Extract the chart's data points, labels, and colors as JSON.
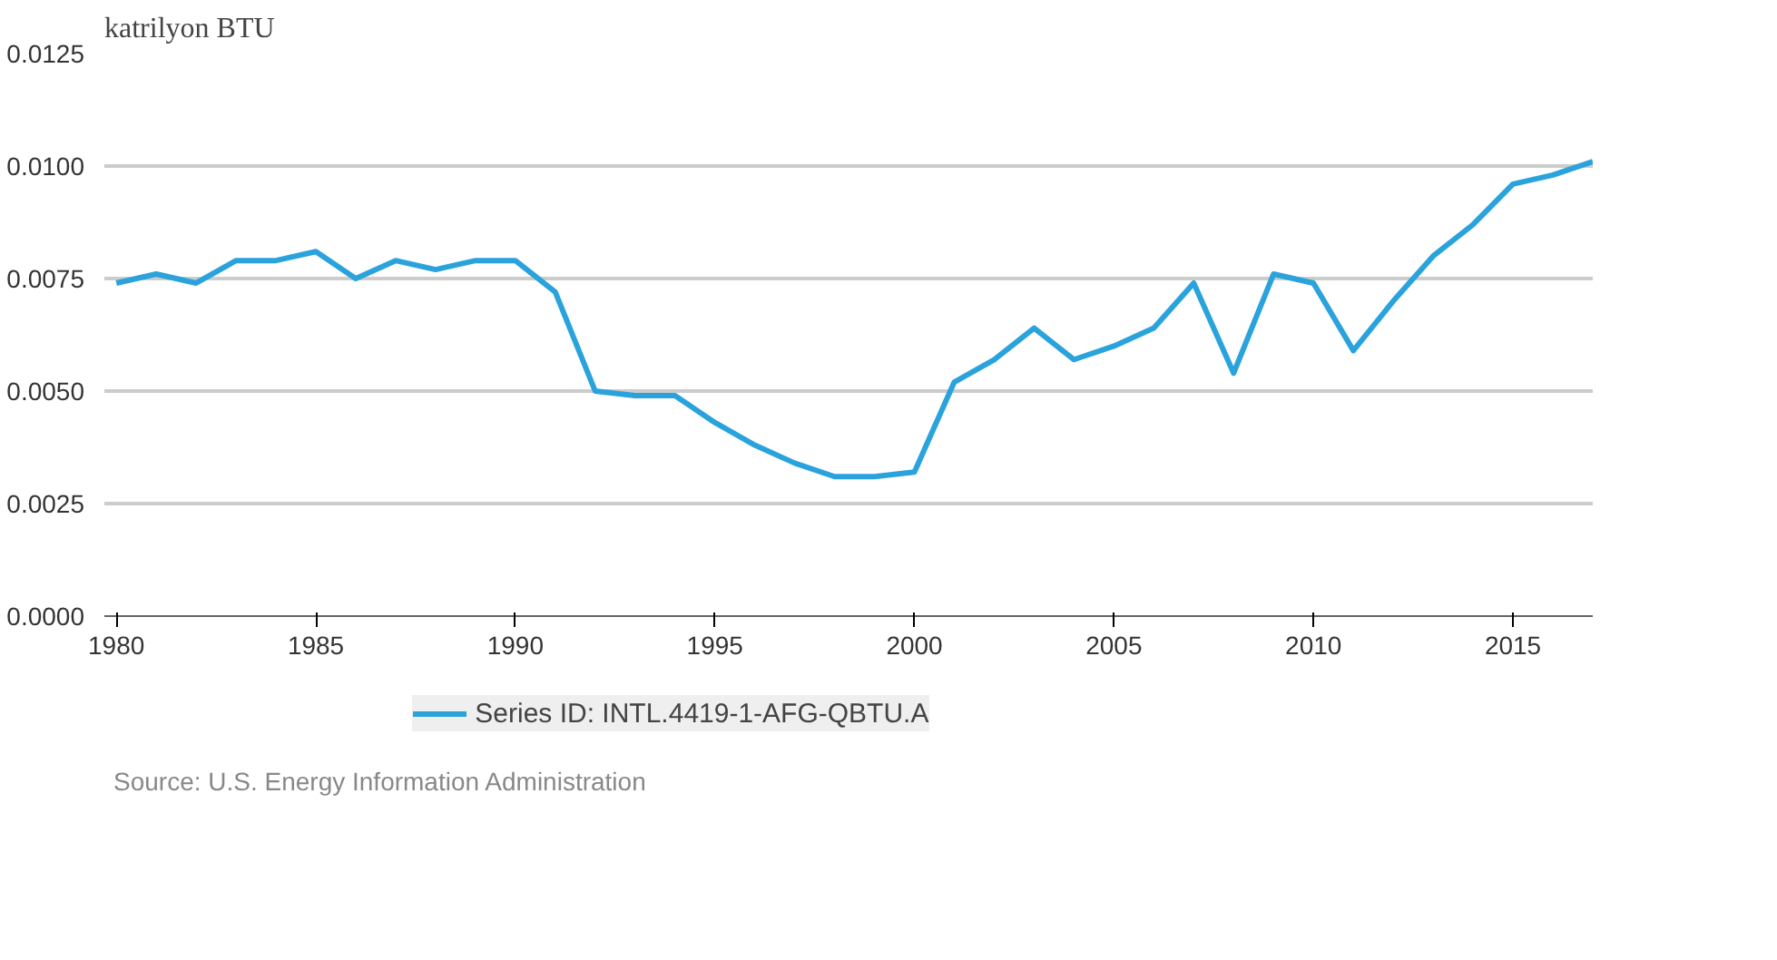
{
  "chart_data": {
    "type": "line",
    "ylabel": "katrilyon BTU",
    "x": [
      1980,
      1981,
      1982,
      1983,
      1984,
      1985,
      1986,
      1987,
      1988,
      1989,
      1990,
      1991,
      1992,
      1993,
      1994,
      1995,
      1996,
      1997,
      1998,
      1999,
      2000,
      2001,
      2002,
      2003,
      2004,
      2005,
      2006,
      2007,
      2008,
      2009,
      2010,
      2011,
      2012,
      2013,
      2014,
      2015,
      2016,
      2017
    ],
    "series": [
      {
        "name": "Series ID: INTL.4419-1-AFG-QBTU.A",
        "color": "#2aa3dc",
        "values": [
          0.0074,
          0.0076,
          0.0074,
          0.0079,
          0.0079,
          0.0081,
          0.0075,
          0.0079,
          0.0077,
          0.0079,
          0.0079,
          0.0072,
          0.005,
          0.0049,
          0.0049,
          0.0043,
          0.0038,
          0.0034,
          0.0031,
          0.0031,
          0.0032,
          0.0052,
          0.0057,
          0.0064,
          0.0057,
          0.006,
          0.0064,
          0.0074,
          0.0054,
          0.0076,
          0.0074,
          0.0059,
          0.007,
          0.008,
          0.0087,
          0.0096,
          0.0098,
          0.0101
        ]
      }
    ],
    "xlim": [
      1979.7,
      2017
    ],
    "xticks": [
      1980,
      1985,
      1990,
      1995,
      2000,
      2005,
      2010,
      2015
    ],
    "ylim": [
      0,
      0.0125
    ],
    "yticks": [
      {
        "value": 0,
        "label": "0.0000"
      },
      {
        "value": 0.0025,
        "label": "0.0025"
      },
      {
        "value": 0.005,
        "label": "0.0050"
      },
      {
        "value": 0.0075,
        "label": "0.0075"
      },
      {
        "value": 0.01,
        "label": "0.0100"
      },
      {
        "value": 0.0125,
        "label": "0.0125"
      }
    ],
    "grid": "y",
    "legend": "bottom",
    "marker": "none",
    "line_style": "solid",
    "annotations": [
      "Source: U.S. Energy Information Administration"
    ]
  }
}
